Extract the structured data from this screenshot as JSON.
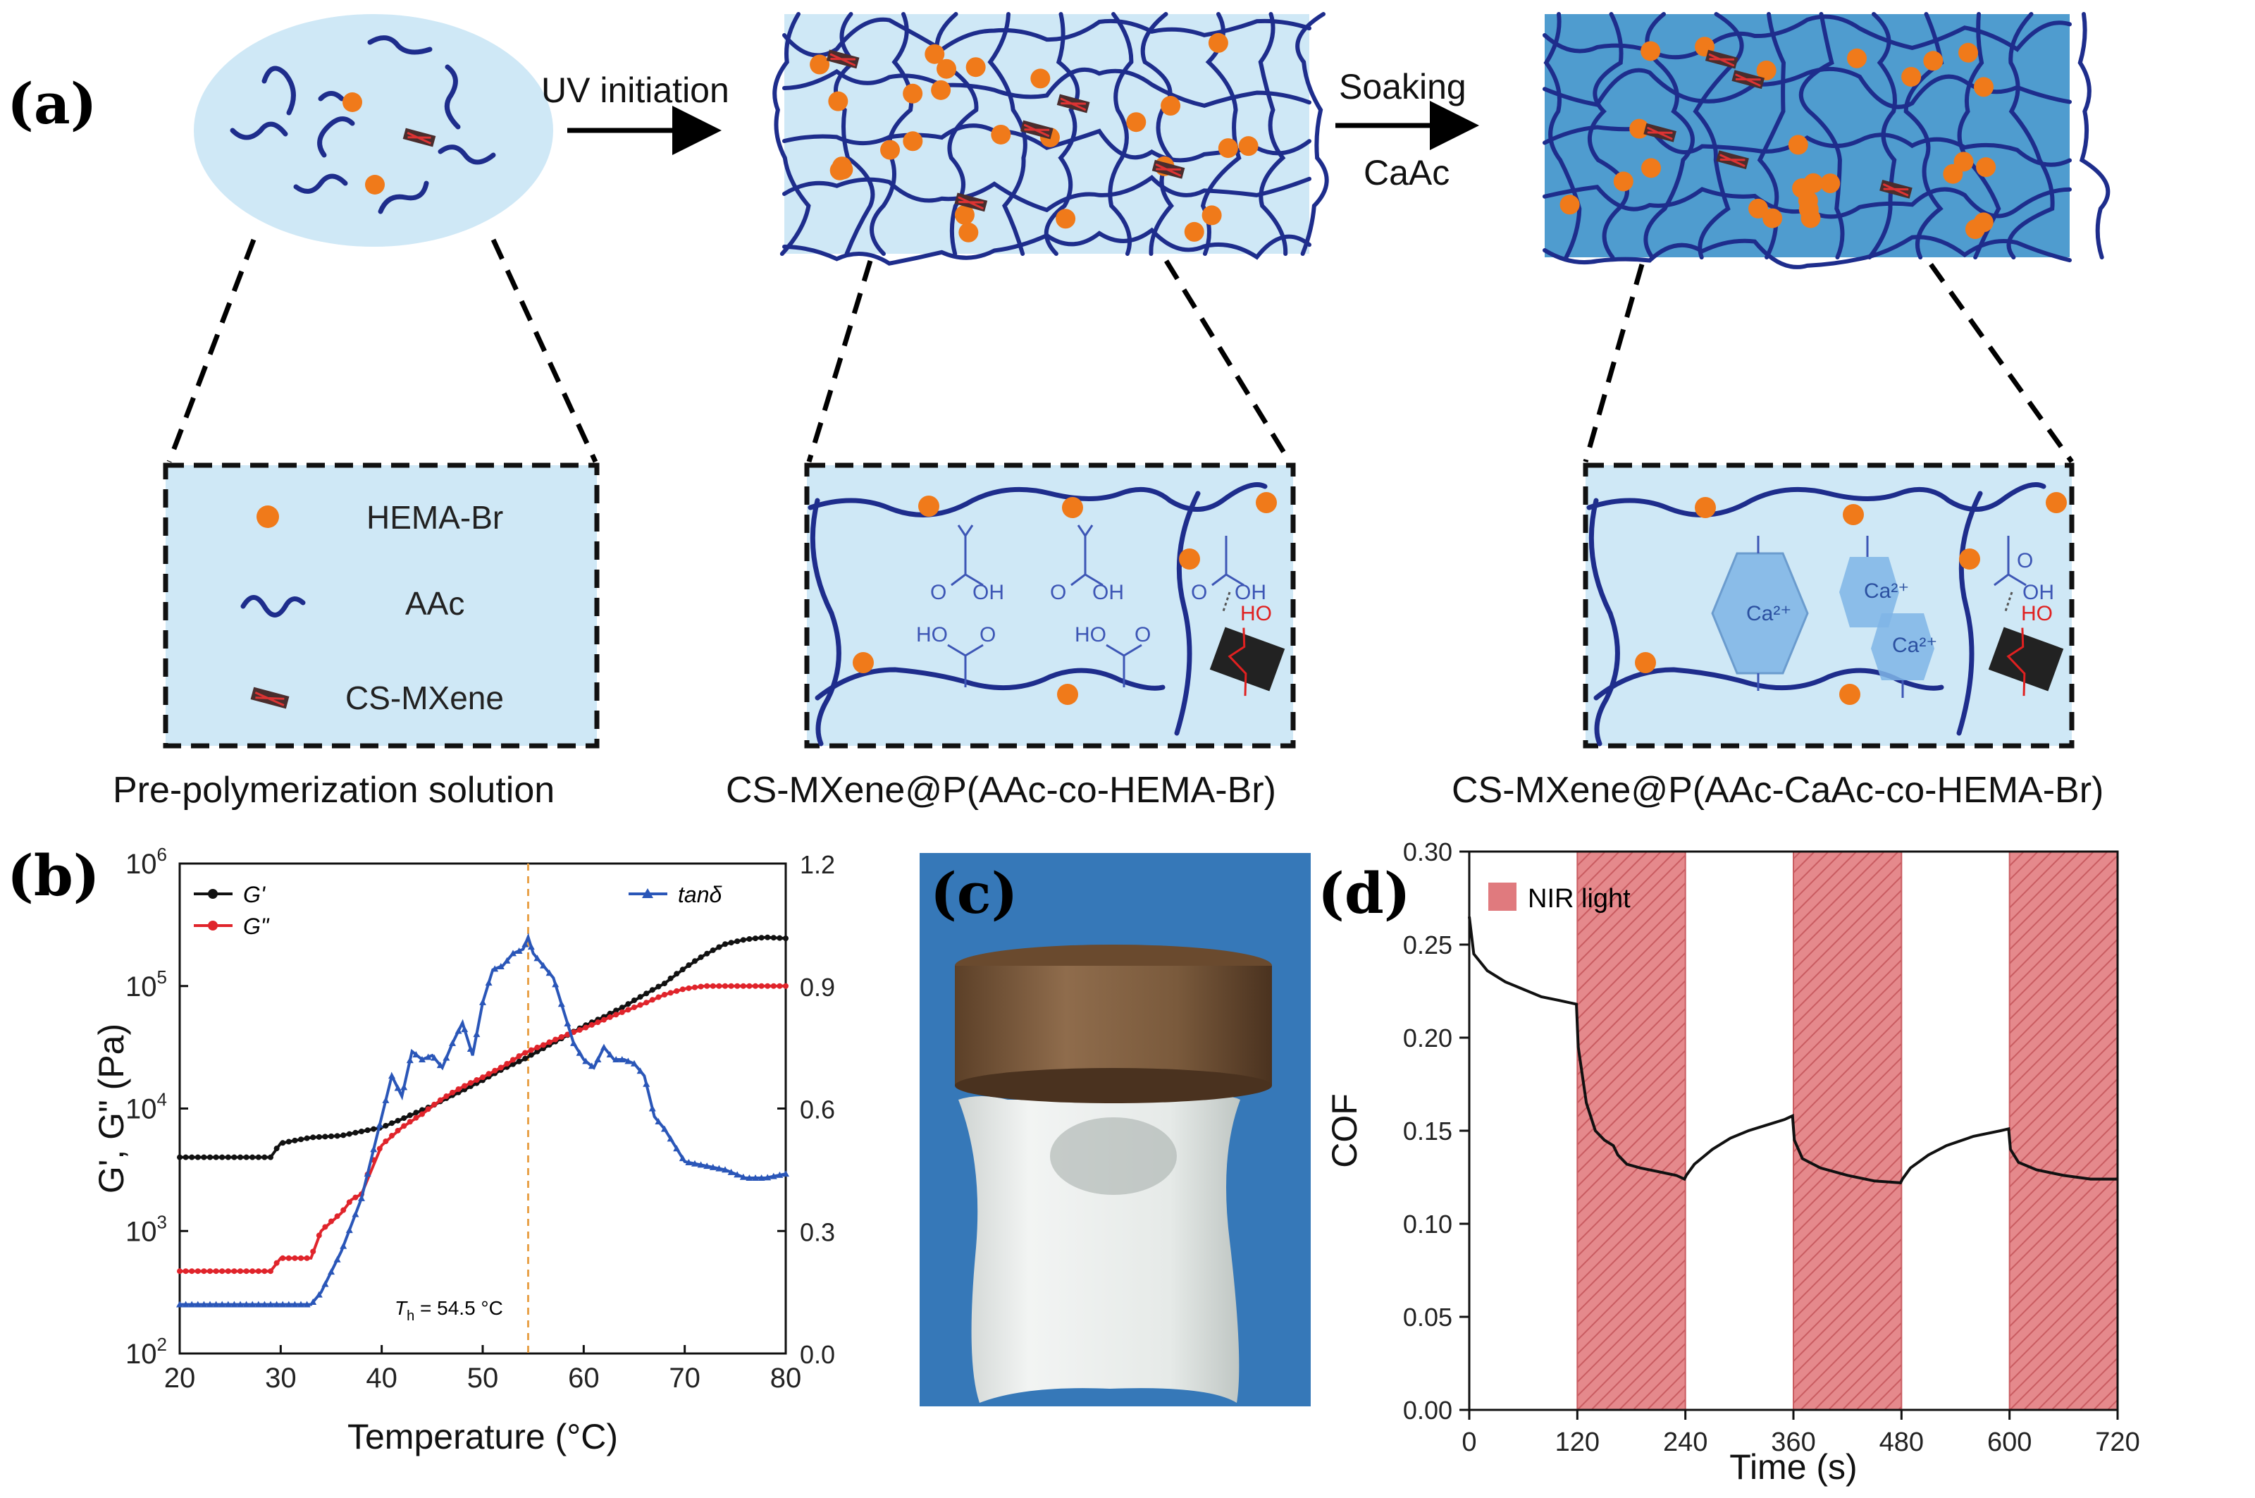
{
  "panels": {
    "a": {
      "label": "(a)",
      "arrow1_label": "UV initiation",
      "arrow2_label_line1": "Soaking",
      "arrow2_label_line2": "CaAc",
      "legend": [
        {
          "icon": "orange-dot-icon",
          "label": "HEMA-Br"
        },
        {
          "icon": "blue-wave-icon",
          "label": "AAc"
        },
        {
          "icon": "mxene-flake-icon",
          "label": "CS-MXene"
        }
      ],
      "captions": [
        "Pre-polymerization solution",
        "CS-MXene@P(AAc-co-HEMA-Br)",
        "CS-MXene@P(AAc-CaAc-co-HEMA-Br)"
      ],
      "chem_labels": {
        "cooh": "OH",
        "ho": "HO",
        "ca": "Ca²⁺"
      },
      "colors": {
        "light_blue": "#cfe8f6",
        "dark_blue_bg": "#4f9ccf",
        "network": "#1e2d8c",
        "dot": "#f07a1a",
        "carboxyl": "#3d56b5"
      }
    },
    "b": {
      "label": "(b)",
      "annotation": "T_h = 54.5 °C",
      "annotation_main": "T",
      "annotation_sub": "h",
      "annotation_rest": " = 54.5 °C",
      "chart_data": {
        "type": "line",
        "xlabel": "Temperature (°C)",
        "ylabel": "G', G\" (Pa)",
        "y2label": "",
        "xlim": [
          20,
          80
        ],
        "ylim_log10": [
          2,
          6
        ],
        "y2lim": [
          0.0,
          1.2
        ],
        "x_ticks": [
          "20",
          "30",
          "40",
          "50",
          "60",
          "70",
          "80"
        ],
        "y2_ticks": [
          "0.0",
          "0.3",
          "0.6",
          "0.9",
          "1.2"
        ],
        "y_ticks": [
          {
            "base": "10",
            "exp": "2"
          },
          {
            "base": "10",
            "exp": "3"
          },
          {
            "base": "10",
            "exp": "4"
          },
          {
            "base": "10",
            "exp": "5"
          },
          {
            "base": "10",
            "exp": "6"
          }
        ],
        "vline_x": 54.5,
        "series": [
          {
            "name": "G'",
            "color": "#111111",
            "axis": "left",
            "points": [
              [
                20,
                4000
              ],
              [
                29,
                4000
              ],
              [
                30,
                5200
              ],
              [
                33,
                5800
              ],
              [
                36,
                6000
              ],
              [
                38,
                6500
              ],
              [
                40,
                7000
              ],
              [
                42,
                8200
              ],
              [
                45,
                10500
              ],
              [
                48,
                14000
              ],
              [
                50,
                17000
              ],
              [
                52,
                21000
              ],
              [
                54,
                25000
              ],
              [
                56,
                31000
              ],
              [
                58,
                38000
              ],
              [
                60,
                47000
              ],
              [
                62,
                56000
              ],
              [
                64,
                68000
              ],
              [
                66,
                85000
              ],
              [
                68,
                105000
              ],
              [
                70,
                140000
              ],
              [
                72,
                180000
              ],
              [
                74,
                220000
              ],
              [
                76,
                240000
              ],
              [
                78,
                250000
              ],
              [
                80,
                245000
              ]
            ]
          },
          {
            "name": "G\"",
            "color": "#e0242b",
            "axis": "left",
            "points": [
              [
                20,
                470
              ],
              [
                29,
                470
              ],
              [
                30,
                600
              ],
              [
                33,
                600
              ],
              [
                34,
                1000
              ],
              [
                36,
                1400
              ],
              [
                37,
                1800
              ],
              [
                38,
                2000
              ],
              [
                40,
                5000
              ],
              [
                42,
                7000
              ],
              [
                44,
                9000
              ],
              [
                46,
                12000
              ],
              [
                48,
                15000
              ],
              [
                50,
                18000
              ],
              [
                52,
                22000
              ],
              [
                54,
                28000
              ],
              [
                56,
                33000
              ],
              [
                58,
                39000
              ],
              [
                60,
                45000
              ],
              [
                62,
                53000
              ],
              [
                64,
                62000
              ],
              [
                66,
                72000
              ],
              [
                68,
                85000
              ],
              [
                70,
                95000
              ],
              [
                72,
                100000
              ],
              [
                74,
                100000
              ],
              [
                76,
                100000
              ],
              [
                80,
                100000
              ]
            ]
          },
          {
            "name": "tanδ",
            "color": "#2a56b8",
            "axis": "right",
            "points": [
              [
                20,
                0.12
              ],
              [
                33,
                0.12
              ],
              [
                34,
                0.15
              ],
              [
                36,
                0.25
              ],
              [
                38,
                0.38
              ],
              [
                40,
                0.58
              ],
              [
                41,
                0.68
              ],
              [
                42,
                0.63
              ],
              [
                43,
                0.74
              ],
              [
                44,
                0.72
              ],
              [
                45,
                0.73
              ],
              [
                46,
                0.7
              ],
              [
                47,
                0.76
              ],
              [
                48,
                0.81
              ],
              [
                49,
                0.73
              ],
              [
                50,
                0.86
              ],
              [
                51,
                0.94
              ],
              [
                52,
                0.95
              ],
              [
                53,
                0.98
              ],
              [
                54,
                0.99
              ],
              [
                54.5,
                1.02
              ],
              [
                55,
                0.98
              ],
              [
                56,
                0.95
              ],
              [
                57,
                0.92
              ],
              [
                58,
                0.84
              ],
              [
                59,
                0.76
              ],
              [
                60,
                0.72
              ],
              [
                61,
                0.7
              ],
              [
                62,
                0.75
              ],
              [
                63,
                0.72
              ],
              [
                64,
                0.72
              ],
              [
                65,
                0.71
              ],
              [
                66,
                0.68
              ],
              [
                67,
                0.58
              ],
              [
                68,
                0.55
              ],
              [
                69,
                0.51
              ],
              [
                70,
                0.47
              ],
              [
                72,
                0.46
              ],
              [
                74,
                0.45
              ],
              [
                76,
                0.43
              ],
              [
                78,
                0.43
              ],
              [
                80,
                0.44
              ]
            ]
          }
        ],
        "legend": [
          "G'",
          "G\"",
          "tanδ"
        ]
      }
    },
    "c": {
      "label": "(c)",
      "description_colors": {
        "background": "#3a7fbf",
        "disc": "#7c5a3a",
        "gel": "#e8ece9"
      }
    },
    "d": {
      "label": "(d)",
      "chart_data": {
        "type": "line",
        "xlabel": "Time (s)",
        "ylabel": "COF",
        "xlim": [
          0,
          720
        ],
        "ylim": [
          0.0,
          0.3
        ],
        "x_ticks": [
          "0",
          "120",
          "240",
          "360",
          "480",
          "600",
          "720"
        ],
        "y_ticks": [
          "0.00",
          "0.05",
          "0.10",
          "0.15",
          "0.20",
          "0.25",
          "0.30"
        ],
        "shaded_intervals": [
          [
            120,
            240
          ],
          [
            360,
            480
          ],
          [
            600,
            720
          ]
        ],
        "shade_label": "NIR light",
        "shade_color": "#e07a7e",
        "series": [
          {
            "name": "COF",
            "color": "#111111",
            "points": [
              [
                0,
                0.265
              ],
              [
                5,
                0.245
              ],
              [
                20,
                0.236
              ],
              [
                40,
                0.23
              ],
              [
                60,
                0.226
              ],
              [
                80,
                0.222
              ],
              [
                100,
                0.22
              ],
              [
                119,
                0.218
              ],
              [
                121,
                0.195
              ],
              [
                130,
                0.165
              ],
              [
                140,
                0.15
              ],
              [
                150,
                0.145
              ],
              [
                160,
                0.142
              ],
              [
                165,
                0.137
              ],
              [
                175,
                0.132
              ],
              [
                190,
                0.13
              ],
              [
                210,
                0.128
              ],
              [
                230,
                0.126
              ],
              [
                239,
                0.124
              ],
              [
                241,
                0.126
              ],
              [
                250,
                0.132
              ],
              [
                270,
                0.14
              ],
              [
                290,
                0.146
              ],
              [
                310,
                0.15
              ],
              [
                330,
                0.153
              ],
              [
                350,
                0.156
              ],
              [
                359,
                0.158
              ],
              [
                361,
                0.145
              ],
              [
                370,
                0.135
              ],
              [
                390,
                0.13
              ],
              [
                420,
                0.126
              ],
              [
                450,
                0.123
              ],
              [
                479,
                0.122
              ],
              [
                481,
                0.124
              ],
              [
                490,
                0.13
              ],
              [
                510,
                0.137
              ],
              [
                530,
                0.142
              ],
              [
                560,
                0.147
              ],
              [
                590,
                0.15
              ],
              [
                599,
                0.151
              ],
              [
                601,
                0.14
              ],
              [
                610,
                0.133
              ],
              [
                630,
                0.129
              ],
              [
                660,
                0.126
              ],
              [
                690,
                0.124
              ],
              [
                720,
                0.124
              ]
            ]
          }
        ]
      }
    }
  }
}
